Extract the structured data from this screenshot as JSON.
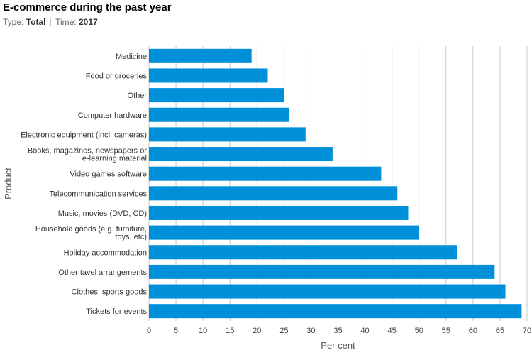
{
  "header": {
    "title": "E-commerce during the past year",
    "type_label": "Type:",
    "type_value": "Total",
    "time_label": "Time:",
    "time_value": "2017"
  },
  "colors": {
    "bar": "#0090d9",
    "grid": "#c8c8c8"
  },
  "chart_data": {
    "type": "bar",
    "orientation": "horizontal",
    "title": "E-commerce during the past year",
    "xlabel": "Per cent",
    "ylabel": "Product",
    "xlim": [
      0,
      70
    ],
    "xticks": [
      0,
      5,
      10,
      15,
      20,
      25,
      30,
      35,
      40,
      45,
      50,
      55,
      60,
      65,
      70
    ],
    "categories": [
      [
        "Medicine"
      ],
      [
        "Food or groceries"
      ],
      [
        "Other"
      ],
      [
        "Computer hardware"
      ],
      [
        "Electronic equipment (incl. cameras)"
      ],
      [
        "Books, magazines, newspapers or",
        "e-learning material"
      ],
      [
        "Video games software"
      ],
      [
        "Telecommunication services"
      ],
      [
        "Music, movies (DVD, CD)"
      ],
      [
        "Household goods (e.g. furniture,",
        "toys, etc)"
      ],
      [
        "Holiday accommodation"
      ],
      [
        "Other tavel arrangements"
      ],
      [
        "Clothes, sports goods"
      ],
      [
        "Tickets for events"
      ]
    ],
    "values": [
      19,
      22,
      25,
      26,
      29,
      34,
      43,
      46,
      48,
      50,
      57,
      64,
      66,
      69
    ],
    "grid": true
  }
}
